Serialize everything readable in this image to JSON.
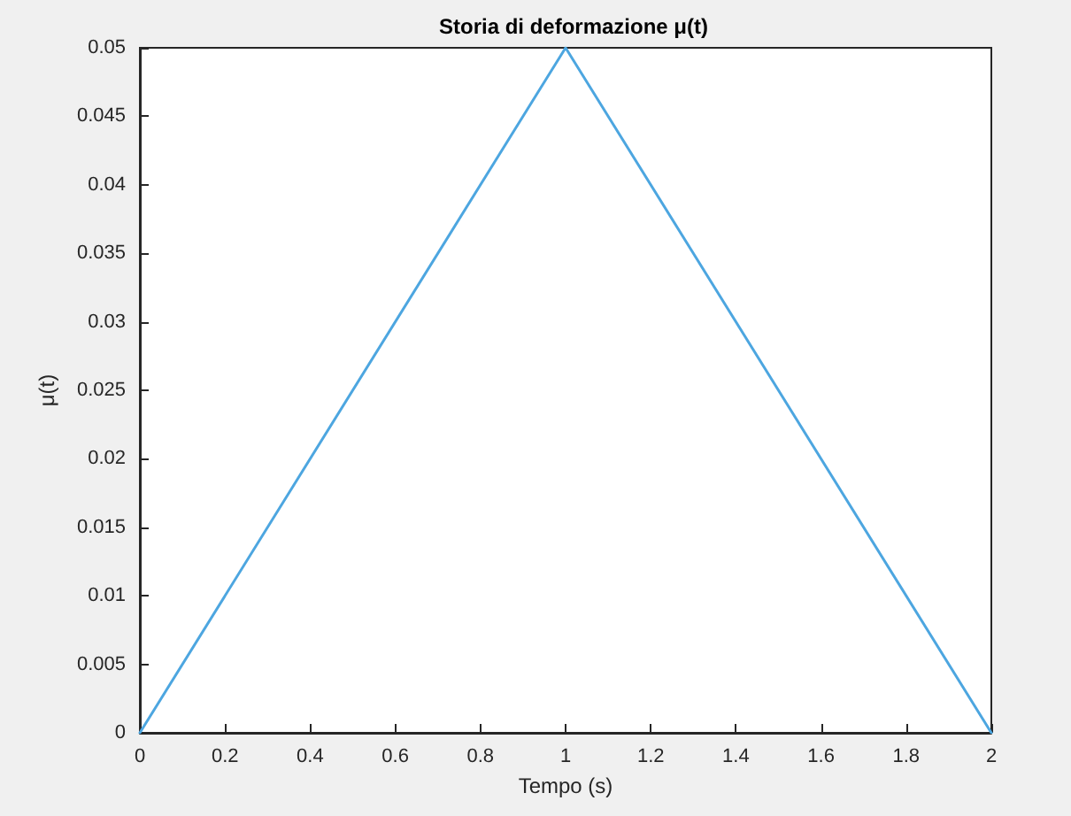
{
  "chart_data": {
    "type": "line",
    "title": "Storia di deformazione μ(t)",
    "xlabel": "Tempo (s)",
    "ylabel": "μ(t)",
    "x": [
      0,
      1,
      2
    ],
    "series": [
      {
        "color": "#4da6e0",
        "values": [
          0,
          0.05,
          0
        ]
      }
    ],
    "xlim": [
      0,
      2
    ],
    "xticks": [
      0,
      0.2,
      0.4,
      0.6,
      0.8,
      1,
      1.2,
      1.4,
      1.6,
      1.8,
      2
    ],
    "ylim": [
      0,
      0.05
    ],
    "yticks": [
      0,
      0.005,
      0.01,
      0.015,
      0.02,
      0.025,
      0.03,
      0.035,
      0.04,
      0.045,
      0.05
    ],
    "grid": false,
    "marker": "none",
    "line_style": "solid"
  }
}
